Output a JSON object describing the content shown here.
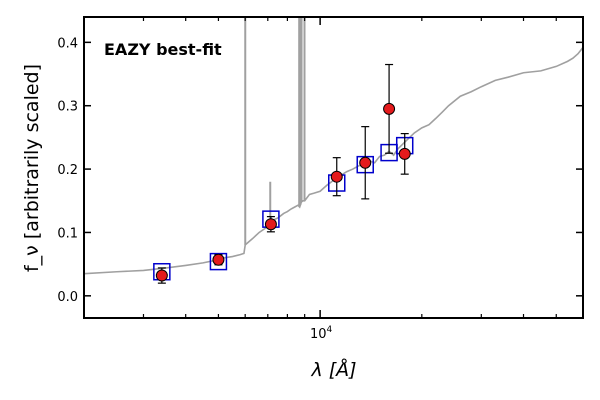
{
  "chart_data": {
    "type": "scatter",
    "title": "",
    "annotation": "EAZY best-fit",
    "xlabel": "λ [Å]",
    "ylabel": "f_ν [arbitrarily scaled]",
    "xscale": "log",
    "xlim": [
      2000,
      60000
    ],
    "ylim": [
      -0.035,
      0.44
    ],
    "yticks": [
      0.0,
      0.1,
      0.2,
      0.3,
      0.4
    ],
    "ytick_labels": [
      "0.0",
      "0.1",
      "0.2",
      "0.3",
      "0.4"
    ],
    "xtick_major": 10000,
    "xtick_major_label": "10",
    "xtick_major_exp": "4",
    "xtick_minor": [
      3000,
      4000,
      5000,
      6000,
      7000,
      8000,
      9000,
      20000,
      30000,
      40000,
      50000
    ],
    "grid": false,
    "colors": {
      "template": "#a0a0a0",
      "observed_fill": "#e41a1c",
      "observed_edge": "#000000",
      "model_box": "#0000cc",
      "annotation": "#ff0000"
    },
    "series": [
      {
        "kind": "template_line",
        "x": [
          2000,
          2500,
          3000,
          3500,
          4000,
          4500,
          5000,
          5200,
          5500,
          5800,
          5950,
          6000,
          6050,
          6300,
          6600,
          6900,
          7000,
          7100,
          7300,
          7500,
          7800,
          8000,
          8200,
          8400,
          8600,
          8700,
          8800,
          8900,
          9000,
          9300,
          9600,
          10000,
          10500,
          11000,
          11500,
          12000,
          12500,
          13000,
          13500,
          14000,
          14500,
          15000,
          15500,
          16000,
          16500,
          17000,
          18000,
          19000,
          20000,
          21000,
          22000,
          23000,
          24000,
          26000,
          28000,
          30000,
          33000,
          36000,
          40000,
          45000,
          50000,
          54000,
          56000,
          58000,
          60000
        ],
        "y": [
          0.035,
          0.038,
          0.04,
          0.044,
          0.048,
          0.052,
          0.057,
          0.06,
          0.062,
          0.065,
          0.067,
          0.08,
          0.082,
          0.09,
          0.1,
          0.107,
          0.117,
          0.115,
          0.12,
          0.123,
          0.13,
          0.133,
          0.137,
          0.14,
          0.143,
          0.14,
          0.148,
          0.15,
          0.15,
          0.16,
          0.162,
          0.165,
          0.175,
          0.183,
          0.19,
          0.196,
          0.2,
          0.205,
          0.208,
          0.213,
          0.21,
          0.22,
          0.222,
          0.228,
          0.222,
          0.232,
          0.245,
          0.257,
          0.265,
          0.27,
          0.28,
          0.29,
          0.3,
          0.315,
          0.322,
          0.33,
          0.34,
          0.345,
          0.352,
          0.355,
          0.362,
          0.37,
          0.375,
          0.382,
          0.392
        ]
      },
      {
        "kind": "template_spikes",
        "x": [
          6003,
          7118,
          8670,
          8740,
          8810,
          8990
        ],
        "top": [
          0.44,
          0.18,
          0.44,
          0.44,
          0.44,
          0.44
        ]
      },
      {
        "kind": "model_boxes",
        "x": [
          3400,
          5000,
          7150,
          11200,
          13600,
          16000,
          17800
        ],
        "y": [
          0.038,
          0.054,
          0.121,
          0.178,
          0.207,
          0.226,
          0.237
        ]
      },
      {
        "kind": "observed_points",
        "x": [
          3400,
          5000,
          7150,
          11200,
          13600,
          16000,
          17800
        ],
        "y": [
          0.032,
          0.057,
          0.113,
          0.188,
          0.21,
          0.295,
          0.224
        ],
        "err": [
          0.012,
          0.008,
          0.012,
          0.03,
          0.057,
          0.07,
          0.032
        ]
      }
    ]
  }
}
